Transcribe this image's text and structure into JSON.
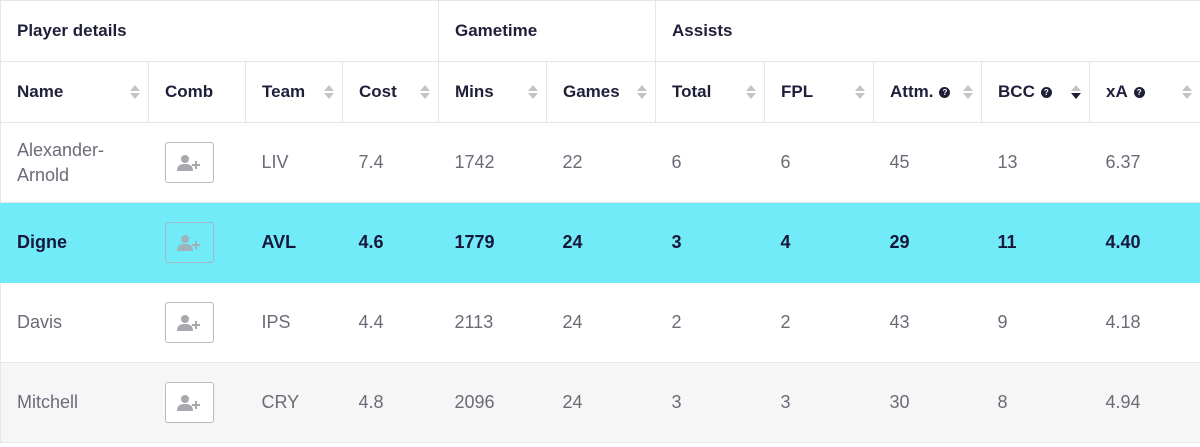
{
  "groups": [
    {
      "label": "Player details",
      "span": 4
    },
    {
      "label": "Gametime",
      "span": 2
    },
    {
      "label": "Assists",
      "span": 5
    }
  ],
  "columns": [
    {
      "label": "Name",
      "sortable": true,
      "help": false
    },
    {
      "label": "Comb",
      "sortable": false,
      "help": false
    },
    {
      "label": "Team",
      "sortable": true,
      "help": false
    },
    {
      "label": "Cost",
      "sortable": true,
      "help": false
    },
    {
      "label": "Mins",
      "sortable": true,
      "help": false
    },
    {
      "label": "Games",
      "sortable": true,
      "help": false
    },
    {
      "label": "Total",
      "sortable": true,
      "help": false
    },
    {
      "label": "FPL",
      "sortable": true,
      "help": false
    },
    {
      "label": "Attm.",
      "sortable": true,
      "help": true
    },
    {
      "label": "BCC",
      "sortable": true,
      "help": true,
      "sort_active": "desc"
    },
    {
      "label": "xA",
      "sortable": true,
      "help": true
    }
  ],
  "rows": [
    {
      "name": "Alexander-Arnold",
      "team": "LIV",
      "cost": "7.4",
      "mins": "1742",
      "games": "22",
      "total": "6",
      "fpl": "6",
      "attm": "45",
      "bcc": "13",
      "xa": "6.37",
      "highlight": false,
      "alt": false
    },
    {
      "name": "Digne",
      "team": "AVL",
      "cost": "4.6",
      "mins": "1779",
      "games": "24",
      "total": "3",
      "fpl": "4",
      "attm": "29",
      "bcc": "11",
      "xa": "4.40",
      "highlight": true,
      "alt": false
    },
    {
      "name": "Davis",
      "team": "IPS",
      "cost": "4.4",
      "mins": "2113",
      "games": "24",
      "total": "2",
      "fpl": "2",
      "attm": "43",
      "bcc": "9",
      "xa": "4.18",
      "highlight": false,
      "alt": false
    },
    {
      "name": "Mitchell",
      "team": "CRY",
      "cost": "4.8",
      "mins": "2096",
      "games": "24",
      "total": "3",
      "fpl": "3",
      "attm": "30",
      "bcc": "8",
      "xa": "4.94",
      "highlight": false,
      "alt": true
    }
  ],
  "icons": {
    "compare": "add-user-icon",
    "help": "question-icon",
    "sort": "sort-arrows-icon"
  },
  "colors": {
    "highlight": "#72ebf8",
    "text_dark": "#1f1f3a",
    "text_muted": "#6b6b78"
  }
}
